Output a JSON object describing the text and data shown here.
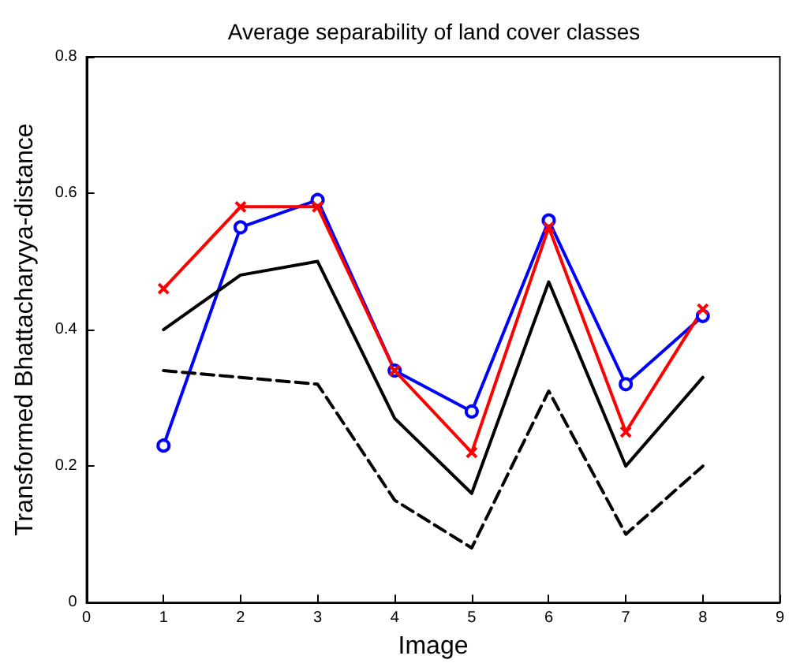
{
  "chart_data": {
    "type": "line",
    "title": "Average separability of land cover classes",
    "xlabel": "Image",
    "ylabel": "Transformed Bhattacharyya-distance",
    "x": [
      1,
      2,
      3,
      4,
      5,
      6,
      7,
      8
    ],
    "series": [
      {
        "color": "#0000ff",
        "marker": "circle",
        "line_style": "solid",
        "values": [
          0.23,
          0.55,
          0.59,
          0.34,
          0.28,
          0.56,
          0.32,
          0.42
        ]
      },
      {
        "color": "#ff0000",
        "marker": "cross",
        "line_style": "solid",
        "values": [
          0.46,
          0.58,
          0.58,
          0.34,
          0.22,
          0.55,
          0.25,
          0.43
        ]
      },
      {
        "color": "#000000",
        "marker": "none",
        "line_style": "solid",
        "values": [
          0.4,
          0.48,
          0.5,
          0.27,
          0.16,
          0.47,
          0.2,
          0.33
        ]
      },
      {
        "color": "#000000",
        "marker": "none",
        "line_style": "dashed",
        "values": [
          0.34,
          0.33,
          0.32,
          0.15,
          0.08,
          0.31,
          0.1,
          0.2
        ]
      }
    ],
    "xlim": [
      0,
      9
    ],
    "xticks": [
      0,
      1,
      2,
      3,
      4,
      5,
      6,
      7,
      8,
      9
    ],
    "ylim": [
      0,
      0.8
    ],
    "yticks": [
      0,
      0.2,
      0.4,
      0.6,
      0.8
    ],
    "grid": false,
    "legend": false
  }
}
